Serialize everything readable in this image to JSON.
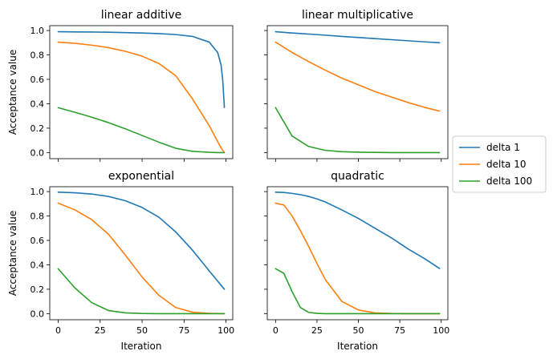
{
  "chart_data": {
    "type": "line",
    "shared_xlabel": "Iteration",
    "shared_ylabel": "Acceptance value",
    "xlim": [
      -5,
      104
    ],
    "ylim": [
      -0.05,
      1.04
    ],
    "xticks": [
      "0",
      "25",
      "50",
      "75",
      "100"
    ],
    "yticks": [
      "0.0",
      "0.2",
      "0.4",
      "0.6",
      "0.8",
      "1.0"
    ],
    "legend": {
      "placement": "right",
      "entries": [
        "delta 1",
        "delta 10",
        "delta 100"
      ],
      "colors": [
        "#1f77b4",
        "#ff7f0e",
        "#2ca02c"
      ]
    },
    "panels": [
      {
        "title": "linear additive",
        "x": [
          0,
          10,
          20,
          30,
          40,
          50,
          60,
          70,
          80,
          90,
          95,
          97,
          98,
          99
        ],
        "series": [
          {
            "name": "delta 1",
            "values": [
              0.99,
              0.989,
              0.988,
              0.986,
              0.983,
              0.98,
              0.975,
              0.967,
              0.952,
              0.905,
              0.82,
              0.72,
              0.6,
              0.37
            ]
          },
          {
            "name": "delta 10",
            "values": [
              0.905,
              0.895,
              0.88,
              0.86,
              0.83,
              0.79,
              0.73,
              0.63,
              0.44,
              0.22,
              0.09,
              0.04,
              0.02,
              0.0
            ]
          },
          {
            "name": "delta 100",
            "values": [
              0.368,
              0.33,
              0.29,
              0.245,
              0.195,
              0.14,
              0.085,
              0.035,
              0.01,
              0.002,
              0.0,
              0.0,
              0.0,
              0.0
            ]
          }
        ]
      },
      {
        "title": "linear multiplicative",
        "x": [
          0,
          10,
          20,
          30,
          40,
          50,
          60,
          70,
          80,
          90,
          99
        ],
        "series": [
          {
            "name": "delta 1",
            "values": [
              0.99,
              0.98,
              0.971,
              0.962,
              0.952,
              0.943,
              0.934,
              0.925,
              0.916,
              0.907,
              0.9
            ]
          },
          {
            "name": "delta 10",
            "values": [
              0.905,
              0.82,
              0.745,
              0.675,
              0.61,
              0.555,
              0.5,
              0.455,
              0.41,
              0.37,
              0.34
            ]
          },
          {
            "name": "delta 100",
            "values": [
              0.368,
              0.135,
              0.05,
              0.018,
              0.007,
              0.003,
              0.001,
              0.0,
              0.0,
              0.0,
              0.0
            ]
          }
        ]
      },
      {
        "title": "exponential",
        "x": [
          0,
          10,
          20,
          30,
          40,
          50,
          60,
          70,
          80,
          90,
          99
        ],
        "series": [
          {
            "name": "delta 1",
            "values": [
              0.995,
              0.99,
              0.98,
              0.96,
              0.925,
              0.87,
              0.79,
              0.67,
              0.52,
              0.35,
              0.2
            ]
          },
          {
            "name": "delta 10",
            "values": [
              0.905,
              0.85,
              0.77,
              0.65,
              0.48,
              0.3,
              0.15,
              0.05,
              0.012,
              0.002,
              0.0
            ]
          },
          {
            "name": "delta 100",
            "values": [
              0.368,
              0.21,
              0.09,
              0.025,
              0.006,
              0.001,
              0.0,
              0.0,
              0.0,
              0.0,
              0.0
            ]
          }
        ]
      },
      {
        "title": "quadratic",
        "x": [
          0,
          5,
          10,
          15,
          20,
          25,
          30,
          40,
          50,
          60,
          70,
          80,
          90,
          99
        ],
        "series": [
          {
            "name": "delta 1",
            "values": [
              0.995,
              0.993,
              0.985,
              0.975,
              0.96,
              0.94,
              0.915,
              0.85,
              0.78,
              0.7,
              0.62,
              0.53,
              0.45,
              0.37
            ]
          },
          {
            "name": "delta 10",
            "values": [
              0.905,
              0.89,
              0.8,
              0.68,
              0.55,
              0.41,
              0.28,
              0.1,
              0.03,
              0.006,
              0.001,
              0.0,
              0.0,
              0.0
            ]
          },
          {
            "name": "delta 100",
            "values": [
              0.368,
              0.33,
              0.18,
              0.05,
              0.01,
              0.002,
              0.0,
              0.0,
              0.0,
              0.0,
              0.0,
              0.0,
              0.0,
              0.0
            ]
          }
        ]
      }
    ]
  }
}
